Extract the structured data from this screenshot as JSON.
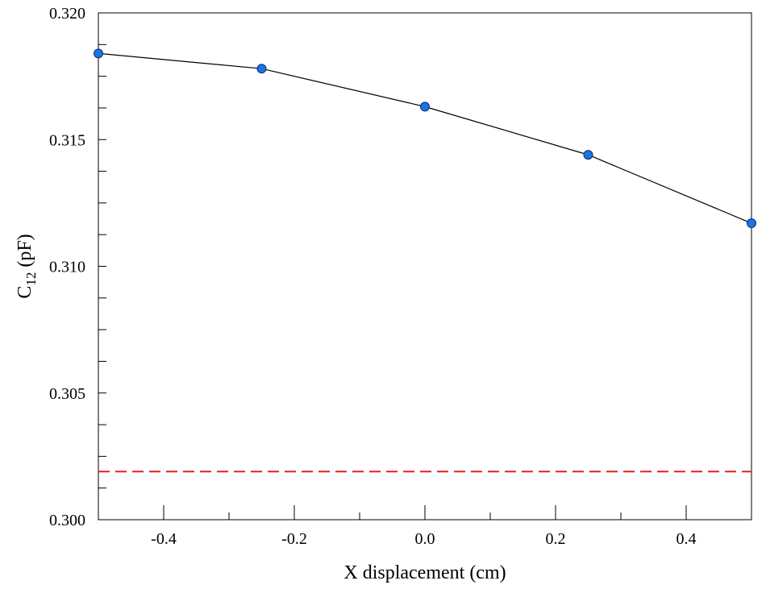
{
  "chart_data": {
    "type": "line",
    "title": "",
    "xlabel": "X displacement (cm)",
    "ylabel": {
      "main": "C",
      "subscript": "12",
      "suffix": " (pF)"
    },
    "xlim": [
      -0.5,
      0.5
    ],
    "ylim": [
      0.3,
      0.32
    ],
    "x_major_ticks": [
      -0.4,
      -0.2,
      0.0,
      0.2,
      0.4
    ],
    "x_tick_labels": [
      "-0.4",
      "-0.2",
      "0.0",
      "0.2",
      "0.4"
    ],
    "x_minor_ticks": [
      -0.3,
      -0.1,
      0.1,
      0.3
    ],
    "y_major_ticks": [
      0.3,
      0.305,
      0.31,
      0.315,
      0.32
    ],
    "y_tick_labels": [
      "0.300",
      "0.305",
      "0.310",
      "0.315",
      "0.320"
    ],
    "y_minor_step": 0.00125,
    "grid": false,
    "series": [
      {
        "x": [
          -0.5,
          -0.25,
          0.0,
          0.25,
          0.5
        ],
        "y": [
          0.3184,
          0.3178,
          0.3163,
          0.3144,
          0.3117
        ],
        "line_color": "#000000",
        "marker_color": "#1a73e8",
        "marker_edge": "#0b2f6b"
      }
    ],
    "reference_lines": [
      {
        "y": 0.3019,
        "style": "dashed",
        "color": "#e02020"
      }
    ]
  }
}
